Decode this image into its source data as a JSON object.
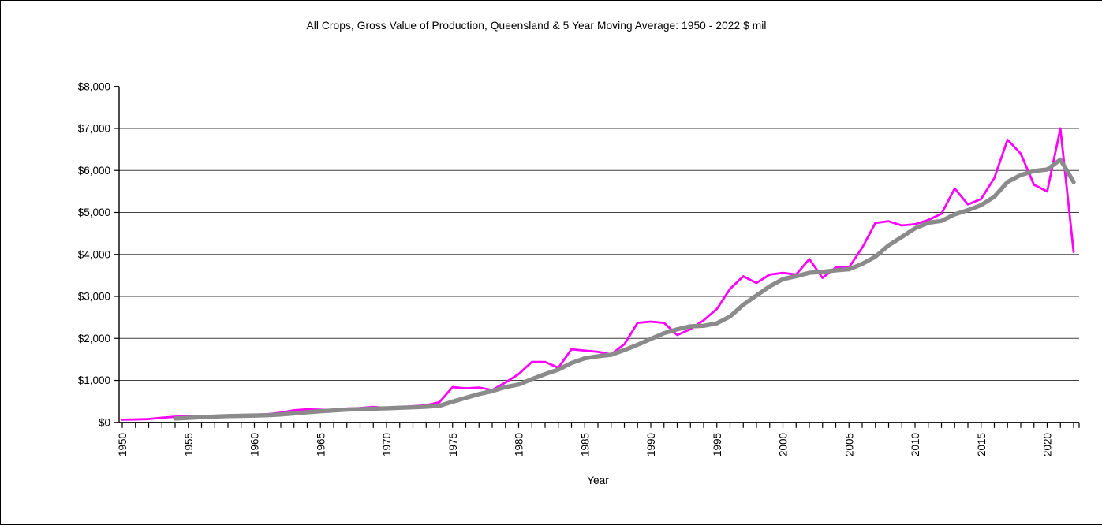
{
  "page": {
    "title": "All Crops, Gross Value of Production, Queensland & 5 Year Moving Average: 1950 - 2022 $ mil"
  },
  "chart_data": {
    "type": "line",
    "title": "All Crops, Gross Value of Production, Queensland & 5 Year Moving Average: 1950 - 2022 $ mil",
    "xlabel": "Year",
    "ylabel": "",
    "ylim": [
      0,
      8000
    ],
    "ytick_step": 1000,
    "ytick_labels": [
      "$0",
      "$1,000",
      "$2,000",
      "$3,000",
      "$4,000",
      "$5,000",
      "$6,000",
      "$7,000",
      "$8,000"
    ],
    "xtick_label_years": [
      1950,
      1955,
      1960,
      1965,
      1970,
      1975,
      1980,
      1985,
      1990,
      1995,
      2000,
      2005,
      2010,
      2015,
      2020
    ],
    "x_range": [
      1950,
      2022
    ],
    "grid": "horizontal",
    "legend": "none",
    "x": [
      1950,
      1951,
      1952,
      1953,
      1954,
      1955,
      1956,
      1957,
      1958,
      1959,
      1960,
      1961,
      1962,
      1963,
      1964,
      1965,
      1966,
      1967,
      1968,
      1969,
      1970,
      1971,
      1972,
      1973,
      1974,
      1975,
      1976,
      1977,
      1978,
      1979,
      1980,
      1981,
      1982,
      1983,
      1984,
      1985,
      1986,
      1987,
      1988,
      1989,
      1990,
      1991,
      1992,
      1993,
      1994,
      1995,
      1996,
      1997,
      1998,
      1999,
      2000,
      2001,
      2002,
      2003,
      2004,
      2005,
      2006,
      2007,
      2008,
      2009,
      2010,
      2011,
      2012,
      2013,
      2014,
      2015,
      2016,
      2017,
      2018,
      2019,
      2020,
      2021,
      2022
    ],
    "series": [
      {
        "name": "All Crops, Gross Value of Production ($ mil)",
        "color": "#FF00FF",
        "stroke_width": 2.8,
        "start_year": 1950,
        "values": [
          65,
          70,
          80,
          110,
          135,
          145,
          150,
          155,
          160,
          170,
          180,
          195,
          230,
          290,
          310,
          300,
          290,
          330,
          340,
          370,
          345,
          355,
          385,
          410,
          480,
          840,
          810,
          830,
          770,
          950,
          1150,
          1440,
          1440,
          1300,
          1740,
          1710,
          1680,
          1620,
          1860,
          2370,
          2400,
          2370,
          2080,
          2220,
          2430,
          2700,
          3180,
          3480,
          3320,
          3520,
          3560,
          3520,
          3890,
          3440,
          3690,
          3690,
          4160,
          4750,
          4790,
          4690,
          4720,
          4820,
          4970,
          5570,
          5190,
          5320,
          5820,
          6730,
          6400,
          5660,
          5500,
          7000,
          4060
        ]
      },
      {
        "name": "5 Year Moving Average ($ mil)",
        "color": "#8B8B8B",
        "stroke_width": 5.4,
        "start_year": 1954,
        "values": [
          92,
          108,
          124,
          139,
          149,
          156,
          163,
          172,
          187,
          213,
          241,
          265,
          284,
          304,
          314,
          326,
          335,
          348,
          359,
          373,
          395,
          494,
          585,
          674,
          746,
          840,
          902,
          1028,
          1150,
          1256,
          1414,
          1526,
          1574,
          1610,
          1722,
          1848,
          1986,
          2124,
          2216,
          2288,
          2300,
          2360,
          2522,
          2802,
          3022,
          3240,
          3412,
          3480,
          3562,
          3586,
          3620,
          3646,
          3774,
          3946,
          4216,
          4416,
          4622,
          4754,
          4798,
          4954,
          5054,
          5174,
          5374,
          5726,
          5892,
          5986,
          6022,
          6258,
          5724
        ]
      }
    ],
    "axis_color": "#000000",
    "gridline_color": "#3f3f3f"
  }
}
